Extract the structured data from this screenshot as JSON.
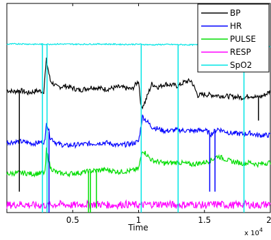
{
  "chart_data": {
    "type": "line",
    "title": "",
    "xlabel": "Time",
    "ylabel": "",
    "xlim": [
      0,
      20000
    ],
    "ylim": [
      0,
      1
    ],
    "x_tick_labels": [
      "0.5",
      "1",
      "1.5",
      "2"
    ],
    "x_ticks": [
      5000,
      10000,
      15000,
      20000
    ],
    "x_exponent_label": {
      "base": "x 10",
      "exp": "4"
    },
    "grid": false,
    "legend_placement": "top-right",
    "series": [
      {
        "name": "BP",
        "color": "#000000",
        "x": [
          0,
          500,
          1000,
          1600,
          2300,
          2800,
          3000,
          3300,
          3800,
          4500,
          5500,
          6500,
          7500,
          8500,
          9500,
          10000,
          10200,
          10500,
          11000,
          11500,
          12000,
          13000,
          13500,
          14000,
          14500,
          15000,
          16000,
          17000,
          18000,
          18500,
          19000,
          19500,
          20000
        ],
        "y": [
          0.585,
          0.578,
          0.585,
          0.572,
          0.582,
          0.58,
          0.73,
          0.63,
          0.6,
          0.605,
          0.585,
          0.6,
          0.59,
          0.6,
          0.59,
          0.63,
          0.5,
          0.53,
          0.615,
          0.6,
          0.615,
          0.605,
          0.625,
          0.63,
          0.56,
          0.565,
          0.56,
          0.555,
          0.55,
          0.56,
          0.55,
          0.56,
          0.58
        ]
      },
      {
        "name": "HR",
        "color": "#0000ff",
        "x": [
          0,
          1000,
          2000,
          2900,
          3000,
          3300,
          3800,
          4500,
          5500,
          6500,
          7500,
          8500,
          9500,
          10000,
          10300,
          11000,
          12000,
          13000,
          14000,
          15000,
          15500,
          16000,
          17000,
          18000,
          18500,
          19000,
          20000
        ],
        "y": [
          0.335,
          0.34,
          0.33,
          0.34,
          0.44,
          0.36,
          0.33,
          0.32,
          0.325,
          0.33,
          0.335,
          0.32,
          0.33,
          0.34,
          0.46,
          0.41,
          0.39,
          0.395,
          0.39,
          0.395,
          0.375,
          0.4,
          0.38,
          0.375,
          0.38,
          0.37,
          0.37
        ]
      },
      {
        "name": "PULSE",
        "color": "#00dd00",
        "x": [
          0,
          1000,
          2000,
          2900,
          3000,
          3300,
          3800,
          4500,
          5500,
          6500,
          7500,
          8500,
          9500,
          10000,
          10300,
          11000,
          12000,
          13000,
          14000,
          15000,
          15500,
          16000,
          17000,
          18000,
          18500,
          19000,
          20000
        ],
        "y": [
          0.185,
          0.19,
          0.185,
          0.19,
          0.3,
          0.215,
          0.19,
          0.185,
          0.19,
          0.2,
          0.205,
          0.195,
          0.2,
          0.21,
          0.3,
          0.25,
          0.235,
          0.24,
          0.23,
          0.24,
          0.25,
          0.27,
          0.245,
          0.235,
          0.24,
          0.23,
          0.24
        ]
      },
      {
        "name": "RESP",
        "color": "#ff00ff",
        "x": [
          0,
          1000,
          2000,
          3000,
          4000,
          5000,
          6000,
          7000,
          8000,
          9000,
          10000,
          11000,
          12000,
          13000,
          14000,
          15000,
          16000,
          17000,
          18000,
          19000,
          20000
        ],
        "y": [
          0.035,
          0.04,
          0.035,
          0.035,
          0.04,
          0.035,
          0.04,
          0.04,
          0.035,
          0.04,
          0.035,
          0.04,
          0.04,
          0.035,
          0.04,
          0.035,
          0.04,
          0.035,
          0.04,
          0.035,
          0.04
        ]
      },
      {
        "name": "SpO2",
        "color": "#00e5e5",
        "x": [
          0,
          1000,
          2000,
          3000,
          4000,
          5000,
          6000,
          7000,
          8000,
          9000,
          10000,
          11000,
          12000,
          13000,
          14000,
          15000,
          16000,
          17000,
          18000,
          19000,
          20000
        ],
        "y": [
          0.805,
          0.807,
          0.805,
          0.805,
          0.806,
          0.805,
          0.805,
          0.806,
          0.805,
          0.804,
          0.805,
          0.802,
          0.804,
          0.803,
          0.802,
          0.802,
          0.795,
          0.79,
          0.792,
          0.793,
          0.795
        ]
      }
    ],
    "spikes": [
      {
        "series": "BP",
        "x": 950,
        "y_low": 0.1
      },
      {
        "series": "BP",
        "x": 19100,
        "y_low": 0.44
      },
      {
        "series": "SpO2",
        "x": 2700,
        "y_low": 0.0
      },
      {
        "series": "SpO2",
        "x": 3050,
        "y_low": 0.0
      },
      {
        "series": "SpO2",
        "x": 10200,
        "y_low": 0.0
      },
      {
        "series": "SpO2",
        "x": 13000,
        "y_low": 0.0
      },
      {
        "series": "SpO2",
        "x": 18000,
        "y_low": 0.0
      },
      {
        "series": "HR",
        "x": 3200,
        "y_low": 0.0
      },
      {
        "series": "HR",
        "x": 15400,
        "y_low": 0.1
      },
      {
        "series": "HR",
        "x": 15800,
        "y_low": 0.1
      },
      {
        "series": "PULSE",
        "x": 6200,
        "y_low": 0.0
      },
      {
        "series": "PULSE",
        "x": 6350,
        "y_low": 0.0
      },
      {
        "series": "PULSE",
        "x": 6800,
        "y_low": 0.02
      }
    ]
  }
}
